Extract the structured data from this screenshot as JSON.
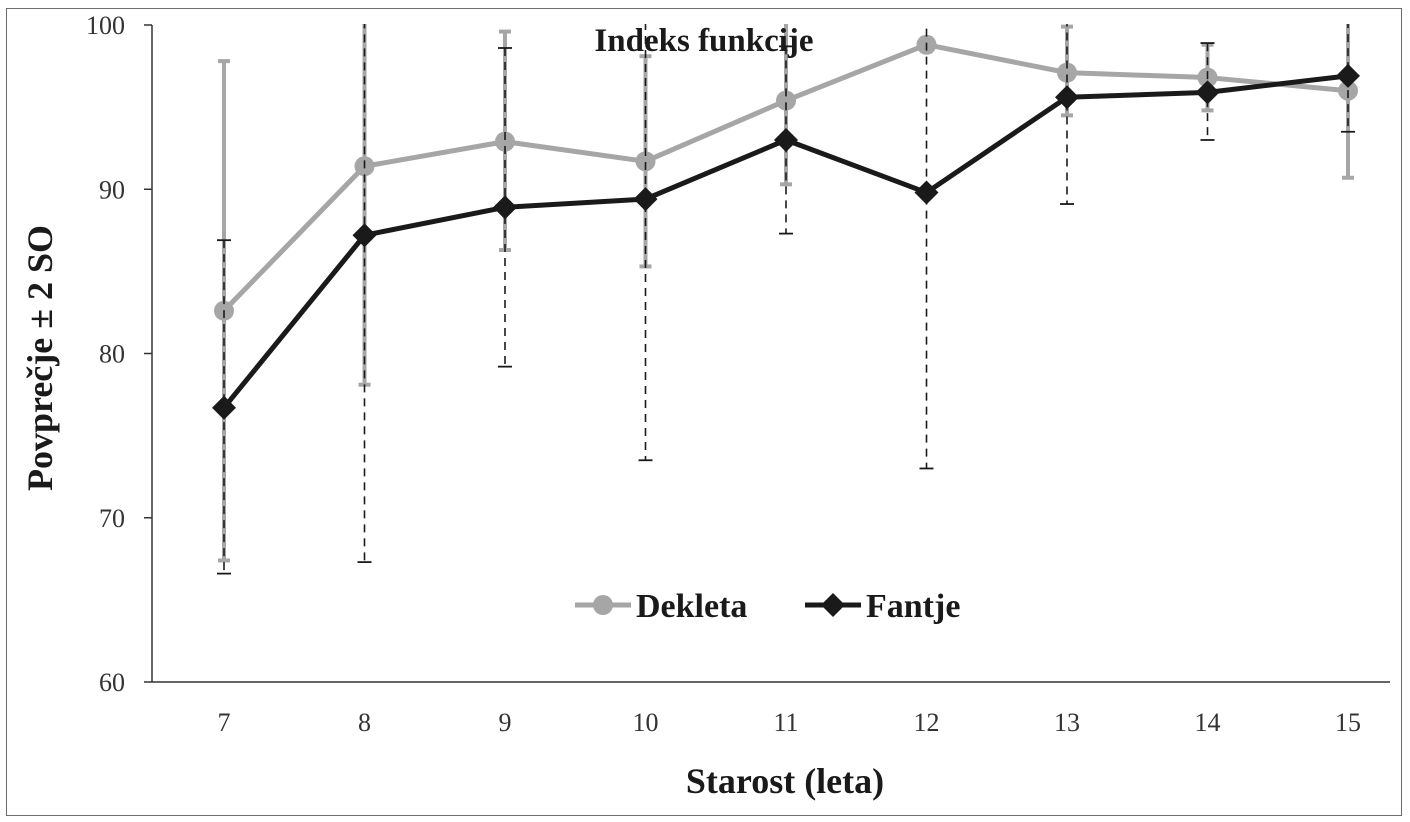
{
  "chart_data": {
    "type": "line",
    "title": "Indeks funkcije",
    "xlabel": "Starost (leta)",
    "ylabel": "Povprečje ± 2 SO",
    "x": [
      7,
      8,
      9,
      10,
      11,
      12,
      13,
      14,
      15
    ],
    "xticks": [
      "7",
      "8",
      "9",
      "10",
      "11",
      "12",
      "13",
      "14",
      "15"
    ],
    "ylim": [
      60,
      100
    ],
    "yticks": [
      "60",
      "70",
      "80",
      "90",
      "100"
    ],
    "grid": false,
    "legend_position": "lower-center",
    "series": [
      {
        "name": "Dekleta",
        "color": "#a6a6a6",
        "marker": "circle",
        "error_style": "solid",
        "values": [
          82.6,
          91.4,
          92.9,
          91.7,
          95.4,
          98.8,
          97.1,
          96.8,
          96.0
        ],
        "err_low": [
          67.4,
          78.1,
          86.3,
          85.3,
          90.3,
          98.4,
          94.5,
          94.8,
          90.7
        ],
        "err_high": [
          97.8,
          104.7,
          99.6,
          98.1,
          100.5,
          99.2,
          99.9,
          98.8,
          101.3
        ]
      },
      {
        "name": "Fantje",
        "color": "#1a1a1a",
        "marker": "diamond",
        "error_style": "dashed",
        "values": [
          76.7,
          87.2,
          88.9,
          89.4,
          93.0,
          89.8,
          95.6,
          95.9,
          96.9
        ],
        "err_low": [
          66.6,
          67.3,
          79.2,
          73.5,
          87.3,
          73.0,
          89.1,
          93.0,
          93.5
        ],
        "err_high": [
          86.9,
          107.1,
          98.6,
          105.3,
          98.7,
          106.6,
          102.1,
          98.9,
          100.3
        ]
      }
    ]
  }
}
